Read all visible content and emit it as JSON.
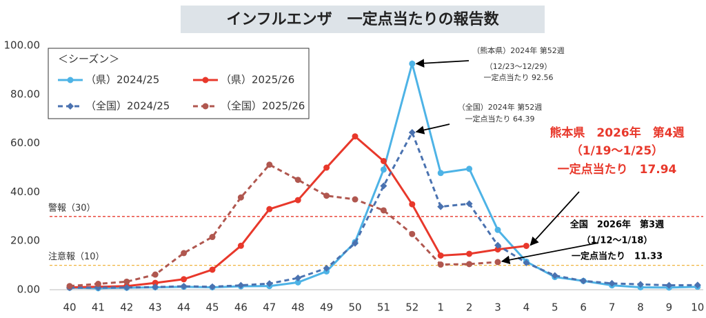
{
  "chart_data": {
    "type": "line",
    "title": "インフルエンザ　一定点当たりの報告数",
    "legend_title": "＜シーズン＞",
    "categories": [
      "40",
      "41",
      "42",
      "43",
      "44",
      "45",
      "46",
      "47",
      "48",
      "49",
      "50",
      "51",
      "52",
      "1",
      "2",
      "3",
      "4",
      "5",
      "6",
      "7",
      "8",
      "9",
      "10"
    ],
    "series": [
      {
        "name": "（県）2024/25",
        "color": "#4db3e6",
        "dashed": false,
        "marker": "circle",
        "values": [
          0.8,
          0.6,
          0.8,
          1.0,
          1.2,
          1.0,
          1.4,
          1.5,
          3.0,
          7.5,
          19.5,
          49.2,
          92.56,
          47.8,
          49.5,
          24.5,
          11.5,
          5.2,
          3.6,
          1.8,
          1.0,
          0.9,
          1.2
        ]
      },
      {
        "name": "（県）2025/26",
        "color": "#e8382b",
        "dashed": false,
        "marker": "circle",
        "values": [
          1.0,
          1.2,
          1.5,
          2.8,
          4.3,
          8.2,
          18.0,
          33.0,
          36.7,
          50.0,
          62.8,
          52.7,
          35.0,
          14.0,
          14.7,
          16.5,
          17.94,
          null,
          null,
          null,
          null,
          null,
          null
        ]
      },
      {
        "name": "（全国）2024/25",
        "color": "#4a72b0",
        "dashed": true,
        "marker": "diamond",
        "values": [
          0.8,
          0.9,
          0.9,
          1.1,
          1.4,
          1.2,
          1.8,
          2.5,
          4.8,
          8.8,
          19.0,
          42.5,
          64.39,
          34.0,
          35.2,
          18.2,
          11.0,
          5.8,
          3.6,
          2.6,
          2.2,
          1.8,
          1.9
        ]
      },
      {
        "name": "（全国）2025/26",
        "color": "#b0574f",
        "dashed": true,
        "marker": "circle",
        "values": [
          1.5,
          2.4,
          3.3,
          6.2,
          15.0,
          21.6,
          37.8,
          51.2,
          45.0,
          38.5,
          37.0,
          32.5,
          22.8,
          10.3,
          10.5,
          11.33,
          null,
          null,
          null,
          null,
          null,
          null,
          null
        ]
      }
    ],
    "ylim": [
      0,
      100
    ],
    "yticks": [
      {
        "value": 0,
        "label": "0.00"
      },
      {
        "value": 20,
        "label": "20.00"
      },
      {
        "value": 40,
        "label": "40.00"
      },
      {
        "value": 60,
        "label": "60.00"
      },
      {
        "value": 80,
        "label": "80.00"
      },
      {
        "value": 100,
        "label": "100.00"
      }
    ],
    "thresholds": [
      {
        "label": "警報（30）",
        "value": 30,
        "color": "#e8382b"
      },
      {
        "label": "注意報（10）",
        "value": 10,
        "color": "#f0b43c"
      }
    ],
    "annotations": [
      {
        "lines": [
          "（熊本県）2024年 第52週",
          "（12/23～12/29）",
          "一定点当たり 92.56"
        ],
        "color": "#333333",
        "bold": false
      },
      {
        "lines": [
          "（全国）2024年 第52週",
          "一定点当たり 64.39"
        ],
        "color": "#333333",
        "bold": false
      },
      {
        "lines": [
          "熊本県　2026年　第4週",
          "（1/19～1/25）",
          "一定点当たり　17.94"
        ],
        "color": "#e8382b",
        "bold": true
      },
      {
        "lines": [
          "全国　2026年　第3週",
          "（1/12～1/18）",
          "一定点当たり　11.33"
        ],
        "color": "#000000",
        "bold": true
      }
    ]
  }
}
